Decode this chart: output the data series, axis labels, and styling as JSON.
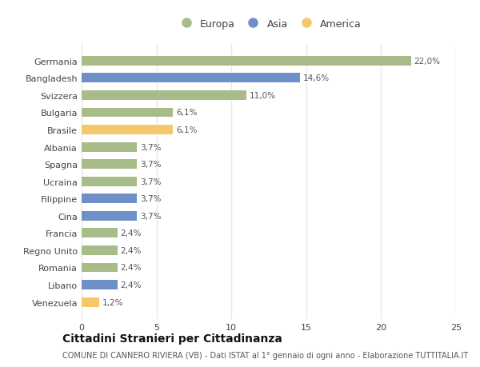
{
  "categories": [
    "Venezuela",
    "Libano",
    "Romania",
    "Regno Unito",
    "Francia",
    "Cina",
    "Filippine",
    "Ucraina",
    "Spagna",
    "Albania",
    "Brasile",
    "Bulgaria",
    "Svizzera",
    "Bangladesh",
    "Germania"
  ],
  "values": [
    1.2,
    2.4,
    2.4,
    2.4,
    2.4,
    3.7,
    3.7,
    3.7,
    3.7,
    3.7,
    6.1,
    6.1,
    11.0,
    14.6,
    22.0
  ],
  "colors": [
    "#f5c96b",
    "#6e8fc7",
    "#a8bc8a",
    "#a8bc8a",
    "#a8bc8a",
    "#6e8fc7",
    "#6e8fc7",
    "#a8bc8a",
    "#a8bc8a",
    "#a8bc8a",
    "#f5c96b",
    "#a8bc8a",
    "#a8bc8a",
    "#6e8fc7",
    "#a8bc8a"
  ],
  "labels": [
    "1,2%",
    "2,4%",
    "2,4%",
    "2,4%",
    "2,4%",
    "3,7%",
    "3,7%",
    "3,7%",
    "3,7%",
    "3,7%",
    "6,1%",
    "6,1%",
    "11,0%",
    "14,6%",
    "22,0%"
  ],
  "legend": [
    {
      "label": "Europa",
      "color": "#a8bc8a"
    },
    {
      "label": "Asia",
      "color": "#6e8fc7"
    },
    {
      "label": "America",
      "color": "#f5c96b"
    }
  ],
  "title": "Cittadini Stranieri per Cittadinanza",
  "subtitle": "COMUNE DI CANNERO RIVIERA (VB) - Dati ISTAT al 1° gennaio di ogni anno - Elaborazione TUTTITALIA.IT",
  "xlim": [
    0,
    25
  ],
  "xticks": [
    0,
    5,
    10,
    15,
    20,
    25
  ],
  "background_color": "#ffffff",
  "bar_height": 0.55,
  "grid_color": "#e8e8e8",
  "title_fontsize": 10,
  "subtitle_fontsize": 7,
  "label_fontsize": 7.5,
  "tick_fontsize": 8,
  "legend_fontsize": 9
}
